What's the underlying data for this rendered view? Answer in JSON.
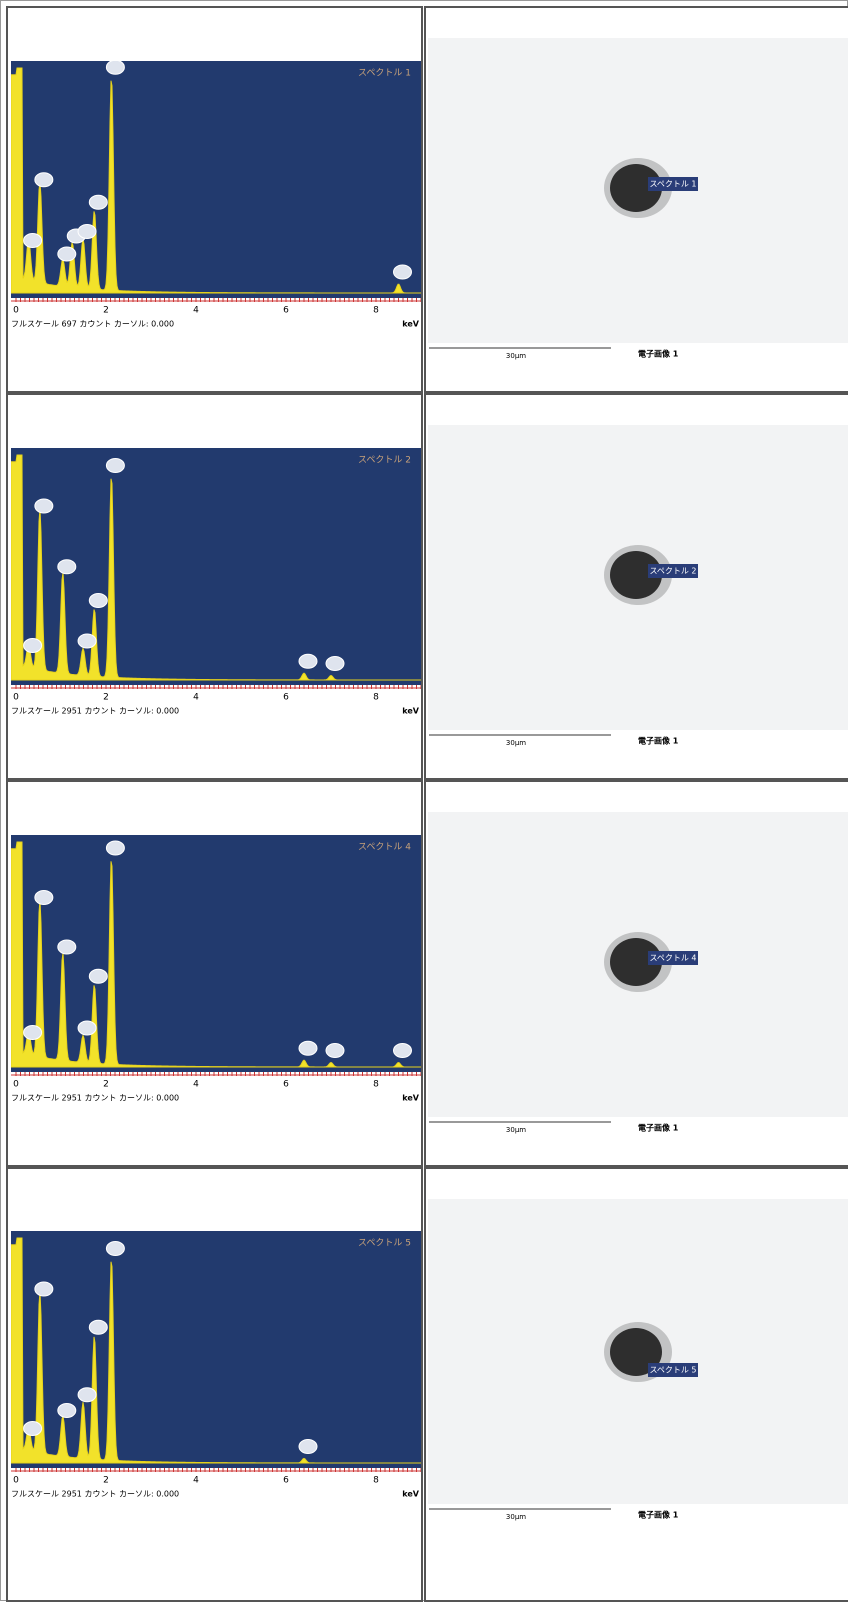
{
  "rows": [
    {
      "spectrum": {
        "title": "スペクトル 1",
        "x_ticks": [
          "0",
          "2",
          "4",
          "6",
          "8"
        ],
        "unit": "keV",
        "footer": "フルスケール 697 カウント カーソル: 0.000"
      },
      "image": {
        "label": "スペクトル 1",
        "scale_bar": "30μm",
        "caption": "電子画像 1"
      }
    },
    {
      "spectrum": {
        "title": "スペクトル 2",
        "x_ticks": [
          "0",
          "2",
          "4",
          "6",
          "8"
        ],
        "unit": "keV",
        "footer": "フルスケール 2951 カウント カーソル: 0.000"
      },
      "image": {
        "label": "スペクトル 2",
        "scale_bar": "30μm",
        "caption": "電子画像 1"
      }
    },
    {
      "spectrum": {
        "title": "スペクトル 4",
        "x_ticks": [
          "0",
          "2",
          "4",
          "6",
          "8"
        ],
        "unit": "keV",
        "footer": "フルスケール 2951 カウント カーソル: 0.000"
      },
      "image": {
        "label": "スペクトル 4",
        "scale_bar": "30μm",
        "caption": "電子画像 1"
      }
    },
    {
      "spectrum": {
        "title": "スペクトル 5",
        "x_ticks": [
          "0",
          "2",
          "4",
          "6",
          "8"
        ],
        "unit": "keV",
        "footer": "フルスケール 2951 カウント カーソル: 0.000"
      },
      "image": {
        "label": "スペクトル 5",
        "scale_bar": "30μm",
        "caption": "電子画像 1"
      }
    }
  ]
}
